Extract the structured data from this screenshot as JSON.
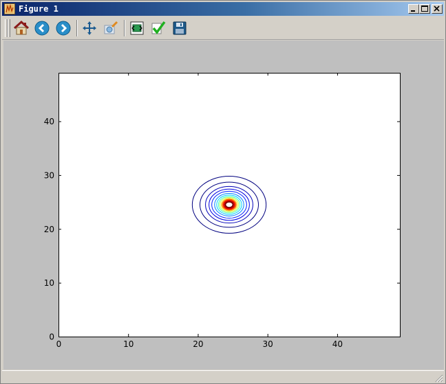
{
  "window": {
    "title": "Figure 1",
    "controls": [
      "minimize",
      "maximize",
      "close"
    ]
  },
  "toolbar": {
    "buttons": [
      {
        "name": "home",
        "icon": "home-icon"
      },
      {
        "name": "back",
        "icon": "back-arrow-icon"
      },
      {
        "name": "forward",
        "icon": "forward-arrow-icon"
      },
      {
        "name": "pan",
        "icon": "move-icon"
      },
      {
        "name": "zoom",
        "icon": "zoom-rect-icon"
      },
      {
        "name": "configure-subplots",
        "icon": "subplots-icon"
      },
      {
        "name": "edit-parameters",
        "icon": "checkmark-icon"
      },
      {
        "name": "save",
        "icon": "floppy-disk-icon"
      }
    ]
  },
  "chart_data": {
    "type": "contour",
    "title": "",
    "xlabel": "",
    "ylabel": "",
    "xlim": [
      0,
      49
    ],
    "ylim": [
      0,
      49
    ],
    "xticks": [
      "0",
      "10",
      "20",
      "30",
      "40"
    ],
    "yticks": [
      "0",
      "10",
      "20",
      "30",
      "40"
    ],
    "center": [
      24.5,
      24.5
    ],
    "levels": [
      {
        "radius": 5.3,
        "color": "#00007f"
      },
      {
        "radius": 4.2,
        "color": "#00007f"
      },
      {
        "radius": 3.4,
        "color": "#0000b8"
      },
      {
        "radius": 2.9,
        "color": "#0000e0"
      },
      {
        "radius": 2.5,
        "color": "#0020ff"
      },
      {
        "radius": 2.1,
        "color": "#0080ff"
      },
      {
        "radius": 1.8,
        "color": "#00d0ff"
      },
      {
        "radius": 1.55,
        "color": "#40ffb8"
      },
      {
        "radius": 1.35,
        "color": "#b8ff40"
      },
      {
        "radius": 1.15,
        "color": "#ffd000"
      },
      {
        "radius": 0.95,
        "color": "#ff6000"
      },
      {
        "radius": 0.75,
        "color": "#e00000"
      },
      {
        "radius": 0.55,
        "color": "#7f0000"
      }
    ],
    "grid": false,
    "legend": "none"
  }
}
